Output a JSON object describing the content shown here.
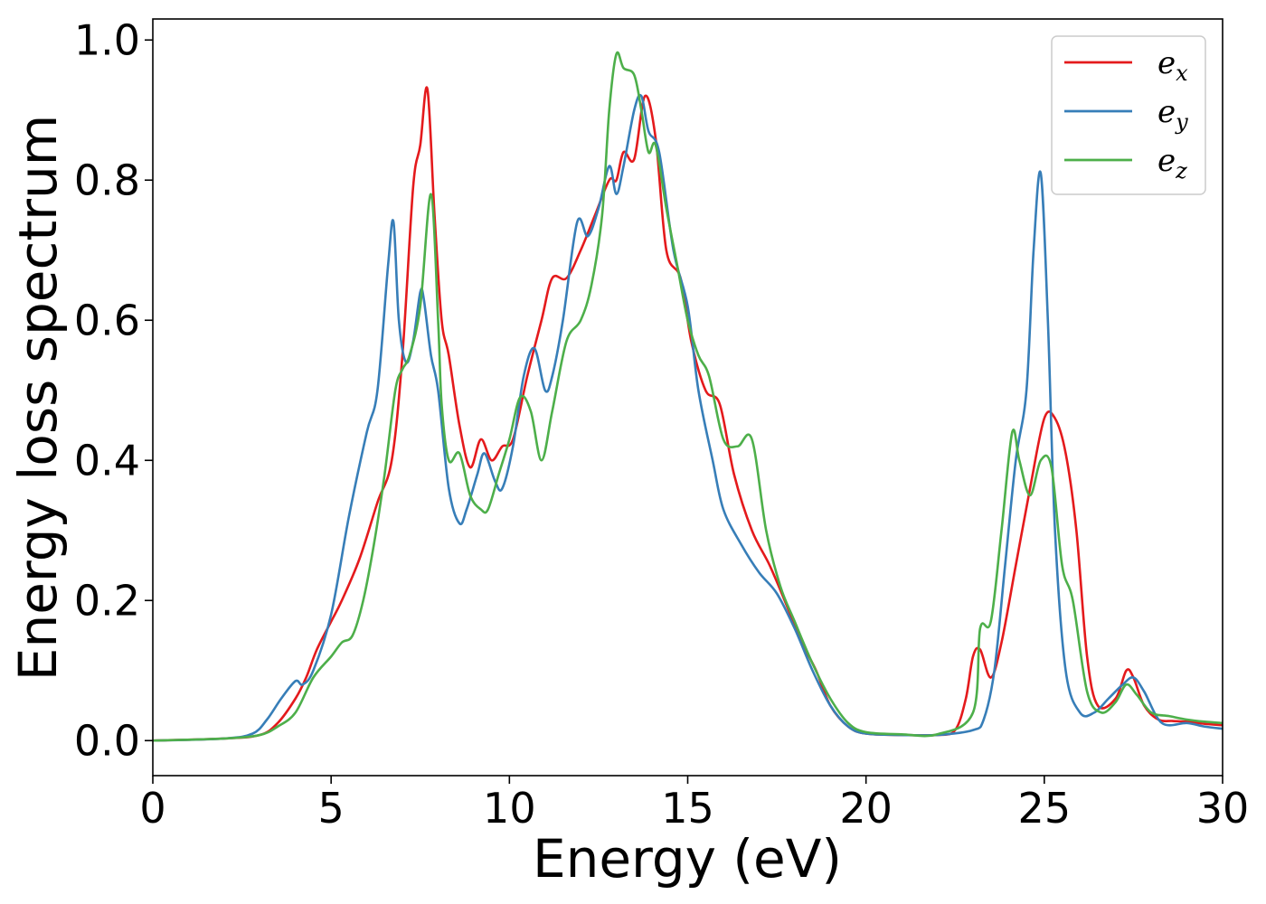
{
  "chart_data": {
    "type": "line",
    "xlabel": "Energy (eV)",
    "ylabel": "Energy loss spectrum",
    "xlim": [
      0,
      30
    ],
    "ylim": [
      -0.05,
      1.03
    ],
    "xticks": [
      0,
      5,
      10,
      15,
      20,
      25,
      30
    ],
    "xtick_labels": [
      "0",
      "5",
      "10",
      "15",
      "20",
      "25",
      "30"
    ],
    "yticks": [
      0.0,
      0.2,
      0.4,
      0.6,
      0.8,
      1.0
    ],
    "ytick_labels": [
      "0.0",
      "0.2",
      "0.4",
      "0.6",
      "0.8",
      "1.0"
    ],
    "grid": false,
    "legend_position": "top-right",
    "series": [
      {
        "name": "e_x",
        "legend_base": "e",
        "legend_sub": "x",
        "color": "#e41a1c",
        "x": [
          0,
          2,
          3,
          3.5,
          4,
          4.3,
          4.6,
          5,
          5.3,
          5.8,
          6.3,
          6.7,
          7.0,
          7.3,
          7.5,
          7.7,
          7.9,
          8.1,
          8.3,
          8.6,
          8.9,
          9.2,
          9.5,
          9.8,
          10.1,
          10.5,
          10.9,
          11.2,
          11.6,
          12.0,
          12.4,
          12.8,
          13.0,
          13.2,
          13.5,
          13.8,
          14.1,
          14.4,
          14.8,
          15.1,
          15.5,
          15.9,
          16.3,
          16.8,
          17.3,
          17.8,
          18.2,
          18.6,
          19.0,
          19.5,
          20.0,
          21.0,
          22.0,
          22.5,
          22.8,
          23.0,
          23.2,
          23.5,
          23.8,
          24.2,
          24.6,
          25.0,
          25.3,
          25.6,
          25.9,
          26.2,
          26.5,
          27.0,
          27.3,
          27.5,
          27.8,
          28.2,
          28.6,
          29.0,
          29.5,
          30.0
        ],
        "y": [
          0.0,
          0.003,
          0.008,
          0.025,
          0.06,
          0.09,
          0.13,
          0.17,
          0.2,
          0.26,
          0.34,
          0.4,
          0.55,
          0.79,
          0.85,
          0.93,
          0.75,
          0.6,
          0.55,
          0.45,
          0.39,
          0.43,
          0.4,
          0.42,
          0.43,
          0.52,
          0.6,
          0.66,
          0.66,
          0.7,
          0.75,
          0.8,
          0.8,
          0.84,
          0.83,
          0.92,
          0.86,
          0.7,
          0.66,
          0.57,
          0.5,
          0.48,
          0.38,
          0.3,
          0.25,
          0.19,
          0.14,
          0.1,
          0.05,
          0.02,
          0.01,
          0.008,
          0.008,
          0.015,
          0.06,
          0.12,
          0.13,
          0.09,
          0.14,
          0.25,
          0.36,
          0.46,
          0.46,
          0.41,
          0.3,
          0.12,
          0.05,
          0.06,
          0.1,
          0.09,
          0.05,
          0.03,
          0.028,
          0.027,
          0.024,
          0.022
        ]
      },
      {
        "name": "e_y",
        "legend_base": "e",
        "legend_sub": "y",
        "color": "#377eb8",
        "x": [
          0,
          2,
          2.8,
          3.2,
          3.6,
          4.0,
          4.2,
          4.5,
          5.0,
          5.5,
          6.0,
          6.3,
          6.6,
          6.75,
          6.9,
          7.1,
          7.3,
          7.5,
          7.6,
          7.8,
          8.0,
          8.3,
          8.6,
          8.8,
          9.1,
          9.3,
          9.6,
          9.8,
          10.1,
          10.4,
          10.7,
          11.0,
          11.2,
          11.5,
          11.9,
          12.2,
          12.5,
          12.8,
          13.0,
          13.2,
          13.5,
          13.7,
          13.9,
          14.2,
          14.6,
          15.0,
          15.3,
          15.7,
          16.0,
          16.5,
          17.0,
          17.5,
          18.0,
          18.5,
          19.0,
          19.5,
          20.0,
          21.0,
          22.0,
          23.0,
          23.3,
          23.6,
          23.9,
          24.2,
          24.5,
          24.7,
          24.9,
          25.1,
          25.3,
          25.6,
          26.0,
          26.4,
          26.8,
          27.2,
          27.5,
          27.8,
          28.3,
          29.0,
          29.5,
          30.0
        ],
        "y": [
          0.0,
          0.003,
          0.01,
          0.03,
          0.06,
          0.085,
          0.08,
          0.1,
          0.18,
          0.32,
          0.44,
          0.5,
          0.68,
          0.74,
          0.6,
          0.54,
          0.57,
          0.64,
          0.63,
          0.55,
          0.5,
          0.36,
          0.31,
          0.33,
          0.38,
          0.41,
          0.37,
          0.36,
          0.42,
          0.52,
          0.56,
          0.5,
          0.52,
          0.6,
          0.74,
          0.72,
          0.76,
          0.82,
          0.78,
          0.82,
          0.9,
          0.92,
          0.87,
          0.84,
          0.7,
          0.62,
          0.5,
          0.4,
          0.33,
          0.28,
          0.24,
          0.21,
          0.16,
          0.1,
          0.05,
          0.02,
          0.01,
          0.008,
          0.008,
          0.015,
          0.03,
          0.1,
          0.25,
          0.4,
          0.5,
          0.7,
          0.81,
          0.6,
          0.3,
          0.1,
          0.04,
          0.04,
          0.06,
          0.08,
          0.09,
          0.07,
          0.025,
          0.025,
          0.02,
          0.017
        ]
      },
      {
        "name": "e_z",
        "legend_base": "e",
        "legend_sub": "z",
        "color": "#4daf4a",
        "x": [
          0,
          2,
          3,
          3.5,
          4,
          4.5,
          5,
          5.3,
          5.6,
          5.9,
          6.2,
          6.5,
          6.8,
          7.0,
          7.2,
          7.5,
          7.8,
          8.0,
          8.1,
          8.3,
          8.6,
          8.9,
          9.2,
          9.4,
          9.7,
          10.0,
          10.3,
          10.6,
          10.9,
          11.2,
          11.6,
          12.0,
          12.3,
          12.6,
          12.8,
          13.0,
          13.2,
          13.5,
          13.7,
          13.9,
          14.1,
          14.4,
          14.7,
          15.0,
          15.3,
          15.6,
          16.0,
          16.4,
          16.8,
          17.2,
          17.6,
          18.0,
          18.5,
          19.0,
          19.5,
          20.0,
          21.0,
          22.0,
          23.0,
          23.2,
          23.5,
          23.8,
          24.1,
          24.3,
          24.6,
          24.9,
          25.2,
          25.5,
          25.8,
          26.2,
          26.6,
          27.0,
          27.3,
          27.6,
          28.0,
          28.5,
          29.0,
          29.5,
          30.0
        ],
        "y": [
          0.0,
          0.003,
          0.008,
          0.02,
          0.04,
          0.09,
          0.12,
          0.14,
          0.15,
          0.2,
          0.28,
          0.38,
          0.5,
          0.53,
          0.55,
          0.62,
          0.78,
          0.6,
          0.48,
          0.4,
          0.41,
          0.35,
          0.33,
          0.33,
          0.38,
          0.43,
          0.49,
          0.47,
          0.4,
          0.47,
          0.57,
          0.6,
          0.65,
          0.75,
          0.9,
          0.98,
          0.96,
          0.95,
          0.9,
          0.84,
          0.85,
          0.76,
          0.68,
          0.6,
          0.55,
          0.52,
          0.43,
          0.42,
          0.43,
          0.3,
          0.22,
          0.17,
          0.11,
          0.06,
          0.025,
          0.012,
          0.009,
          0.009,
          0.04,
          0.16,
          0.17,
          0.3,
          0.44,
          0.4,
          0.35,
          0.4,
          0.39,
          0.25,
          0.2,
          0.07,
          0.04,
          0.055,
          0.08,
          0.065,
          0.04,
          0.035,
          0.03,
          0.027,
          0.025
        ]
      }
    ]
  }
}
